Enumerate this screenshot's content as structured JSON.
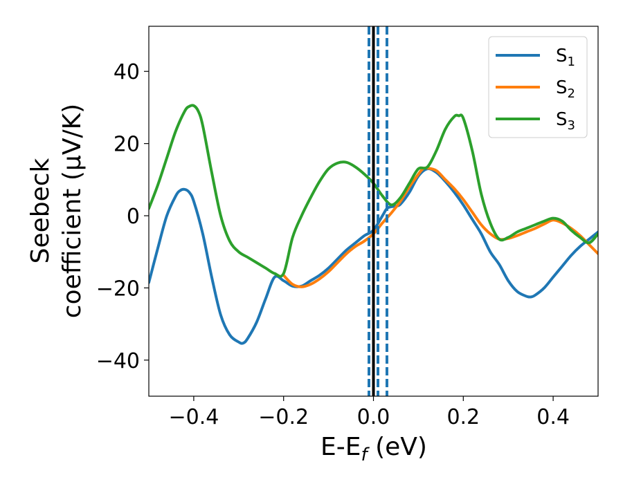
{
  "chart_data": {
    "type": "line",
    "xlabel": {
      "main": "E-E",
      "sub": "f",
      "rest": " (eV)"
    },
    "ylabel": {
      "line1": "Seebeck",
      "line2": "coefficient  (μV/K)"
    },
    "xlim": [
      -0.5,
      0.5
    ],
    "ylim": [
      -50,
      52.5
    ],
    "xticks": [
      -0.4,
      -0.2,
      0.0,
      0.2,
      0.4
    ],
    "xtick_labels": [
      "−0.4",
      "−0.2",
      "0.0",
      "0.2",
      "0.4"
    ],
    "yticks": [
      -40,
      -20,
      0,
      20,
      40
    ],
    "ytick_labels": [
      "−40",
      "−20",
      "0",
      "20",
      "40"
    ],
    "grid": false,
    "legend_position": "top-right",
    "series": [
      {
        "name": "S",
        "sub": "1",
        "color": "#1f77b4",
        "x": [
          -0.5,
          -0.48,
          -0.46,
          -0.44,
          -0.43,
          -0.42,
          -0.41,
          -0.4,
          -0.38,
          -0.36,
          -0.34,
          -0.32,
          -0.3,
          -0.29,
          -0.28,
          -0.26,
          -0.24,
          -0.22,
          -0.2,
          -0.18,
          -0.16,
          -0.14,
          -0.12,
          -0.1,
          -0.08,
          -0.06,
          -0.04,
          -0.02,
          0.0,
          0.02,
          0.03,
          0.04,
          0.05,
          0.06,
          0.08,
          0.1,
          0.12,
          0.14,
          0.16,
          0.18,
          0.2,
          0.22,
          0.24,
          0.26,
          0.28,
          0.3,
          0.32,
          0.34,
          0.35,
          0.36,
          0.38,
          0.4,
          0.42,
          0.44,
          0.46,
          0.48,
          0.5
        ],
        "y": [
          -18.5,
          -9,
          0,
          5.5,
          7,
          7.3,
          6.5,
          4,
          -5,
          -17,
          -27.5,
          -33,
          -35,
          -35.3,
          -34,
          -29.5,
          -23,
          -17,
          -18,
          -19.5,
          -19.5,
          -18,
          -16.5,
          -14.5,
          -12,
          -9.5,
          -7.5,
          -5.5,
          -4,
          0,
          2,
          2.5,
          2.7,
          3.2,
          6.5,
          11,
          13,
          12,
          9.5,
          6.5,
          3,
          -1,
          -5,
          -10,
          -13.5,
          -18,
          -21,
          -22.3,
          -22.5,
          -22,
          -20,
          -17,
          -14,
          -11,
          -8.5,
          -6.5,
          -4.5
        ]
      },
      {
        "name": "S",
        "sub": "2",
        "color": "#ff7f0e",
        "x": [
          -0.2,
          -0.18,
          -0.16,
          -0.14,
          -0.12,
          -0.1,
          -0.08,
          -0.06,
          -0.04,
          -0.02,
          0.0,
          0.02,
          0.04,
          0.06,
          0.08,
          0.1,
          0.11,
          0.12,
          0.14,
          0.16,
          0.18,
          0.2,
          0.22,
          0.24,
          0.26,
          0.28,
          0.3,
          0.32,
          0.34,
          0.36,
          0.38,
          0.4,
          0.42,
          0.44,
          0.46,
          0.48,
          0.5
        ],
        "y": [
          -16.5,
          -19,
          -19.7,
          -19,
          -17.5,
          -15.5,
          -13,
          -10.5,
          -8.5,
          -7,
          -5,
          -2,
          0.8,
          4,
          8,
          11.5,
          13,
          13.2,
          12.5,
          10,
          7.5,
          4.5,
          1,
          -2.5,
          -5,
          -6.5,
          -6.3,
          -5.5,
          -4.5,
          -3.5,
          -2.3,
          -1.2,
          -2,
          -3.5,
          -5.5,
          -8,
          -10.5
        ]
      },
      {
        "name": "S",
        "sub": "3",
        "color": "#2ca02c",
        "x": [
          -0.5,
          -0.48,
          -0.46,
          -0.44,
          -0.42,
          -0.41,
          -0.4,
          -0.39,
          -0.38,
          -0.36,
          -0.34,
          -0.32,
          -0.3,
          -0.28,
          -0.26,
          -0.24,
          -0.22,
          -0.2,
          -0.18,
          -0.16,
          -0.14,
          -0.12,
          -0.1,
          -0.08,
          -0.06,
          -0.04,
          -0.02,
          0.0,
          0.02,
          0.04,
          0.06,
          0.08,
          0.1,
          0.12,
          0.14,
          0.16,
          0.18,
          0.19,
          0.2,
          0.22,
          0.24,
          0.26,
          0.28,
          0.3,
          0.32,
          0.34,
          0.36,
          0.38,
          0.4,
          0.42,
          0.44,
          0.46,
          0.48,
          0.5
        ],
        "y": [
          2,
          8.5,
          16,
          23.5,
          29,
          30.3,
          30.5,
          29,
          25,
          12,
          0,
          -7,
          -10,
          -11.5,
          -13,
          -14.5,
          -16,
          -16,
          -6,
          0,
          5,
          9.5,
          13,
          14.6,
          14.8,
          13.5,
          11.5,
          9,
          5.5,
          3,
          5,
          9,
          13,
          13.5,
          18,
          24,
          27.5,
          27.7,
          27,
          18,
          6,
          -2,
          -6.5,
          -6,
          -4.5,
          -3.5,
          -2.5,
          -1.5,
          -0.7,
          -1.5,
          -4,
          -6,
          -7.5,
          -5
        ]
      }
    ],
    "vertical_lines": [
      {
        "x": 0.0,
        "color": "#000000",
        "style": "solid"
      },
      {
        "x": -0.01,
        "color": "#1f77b4",
        "style": "dashed"
      },
      {
        "x": 0.01,
        "color": "#1f77b4",
        "style": "dashed"
      },
      {
        "x": 0.03,
        "color": "#1f77b4",
        "style": "dashed"
      }
    ]
  }
}
